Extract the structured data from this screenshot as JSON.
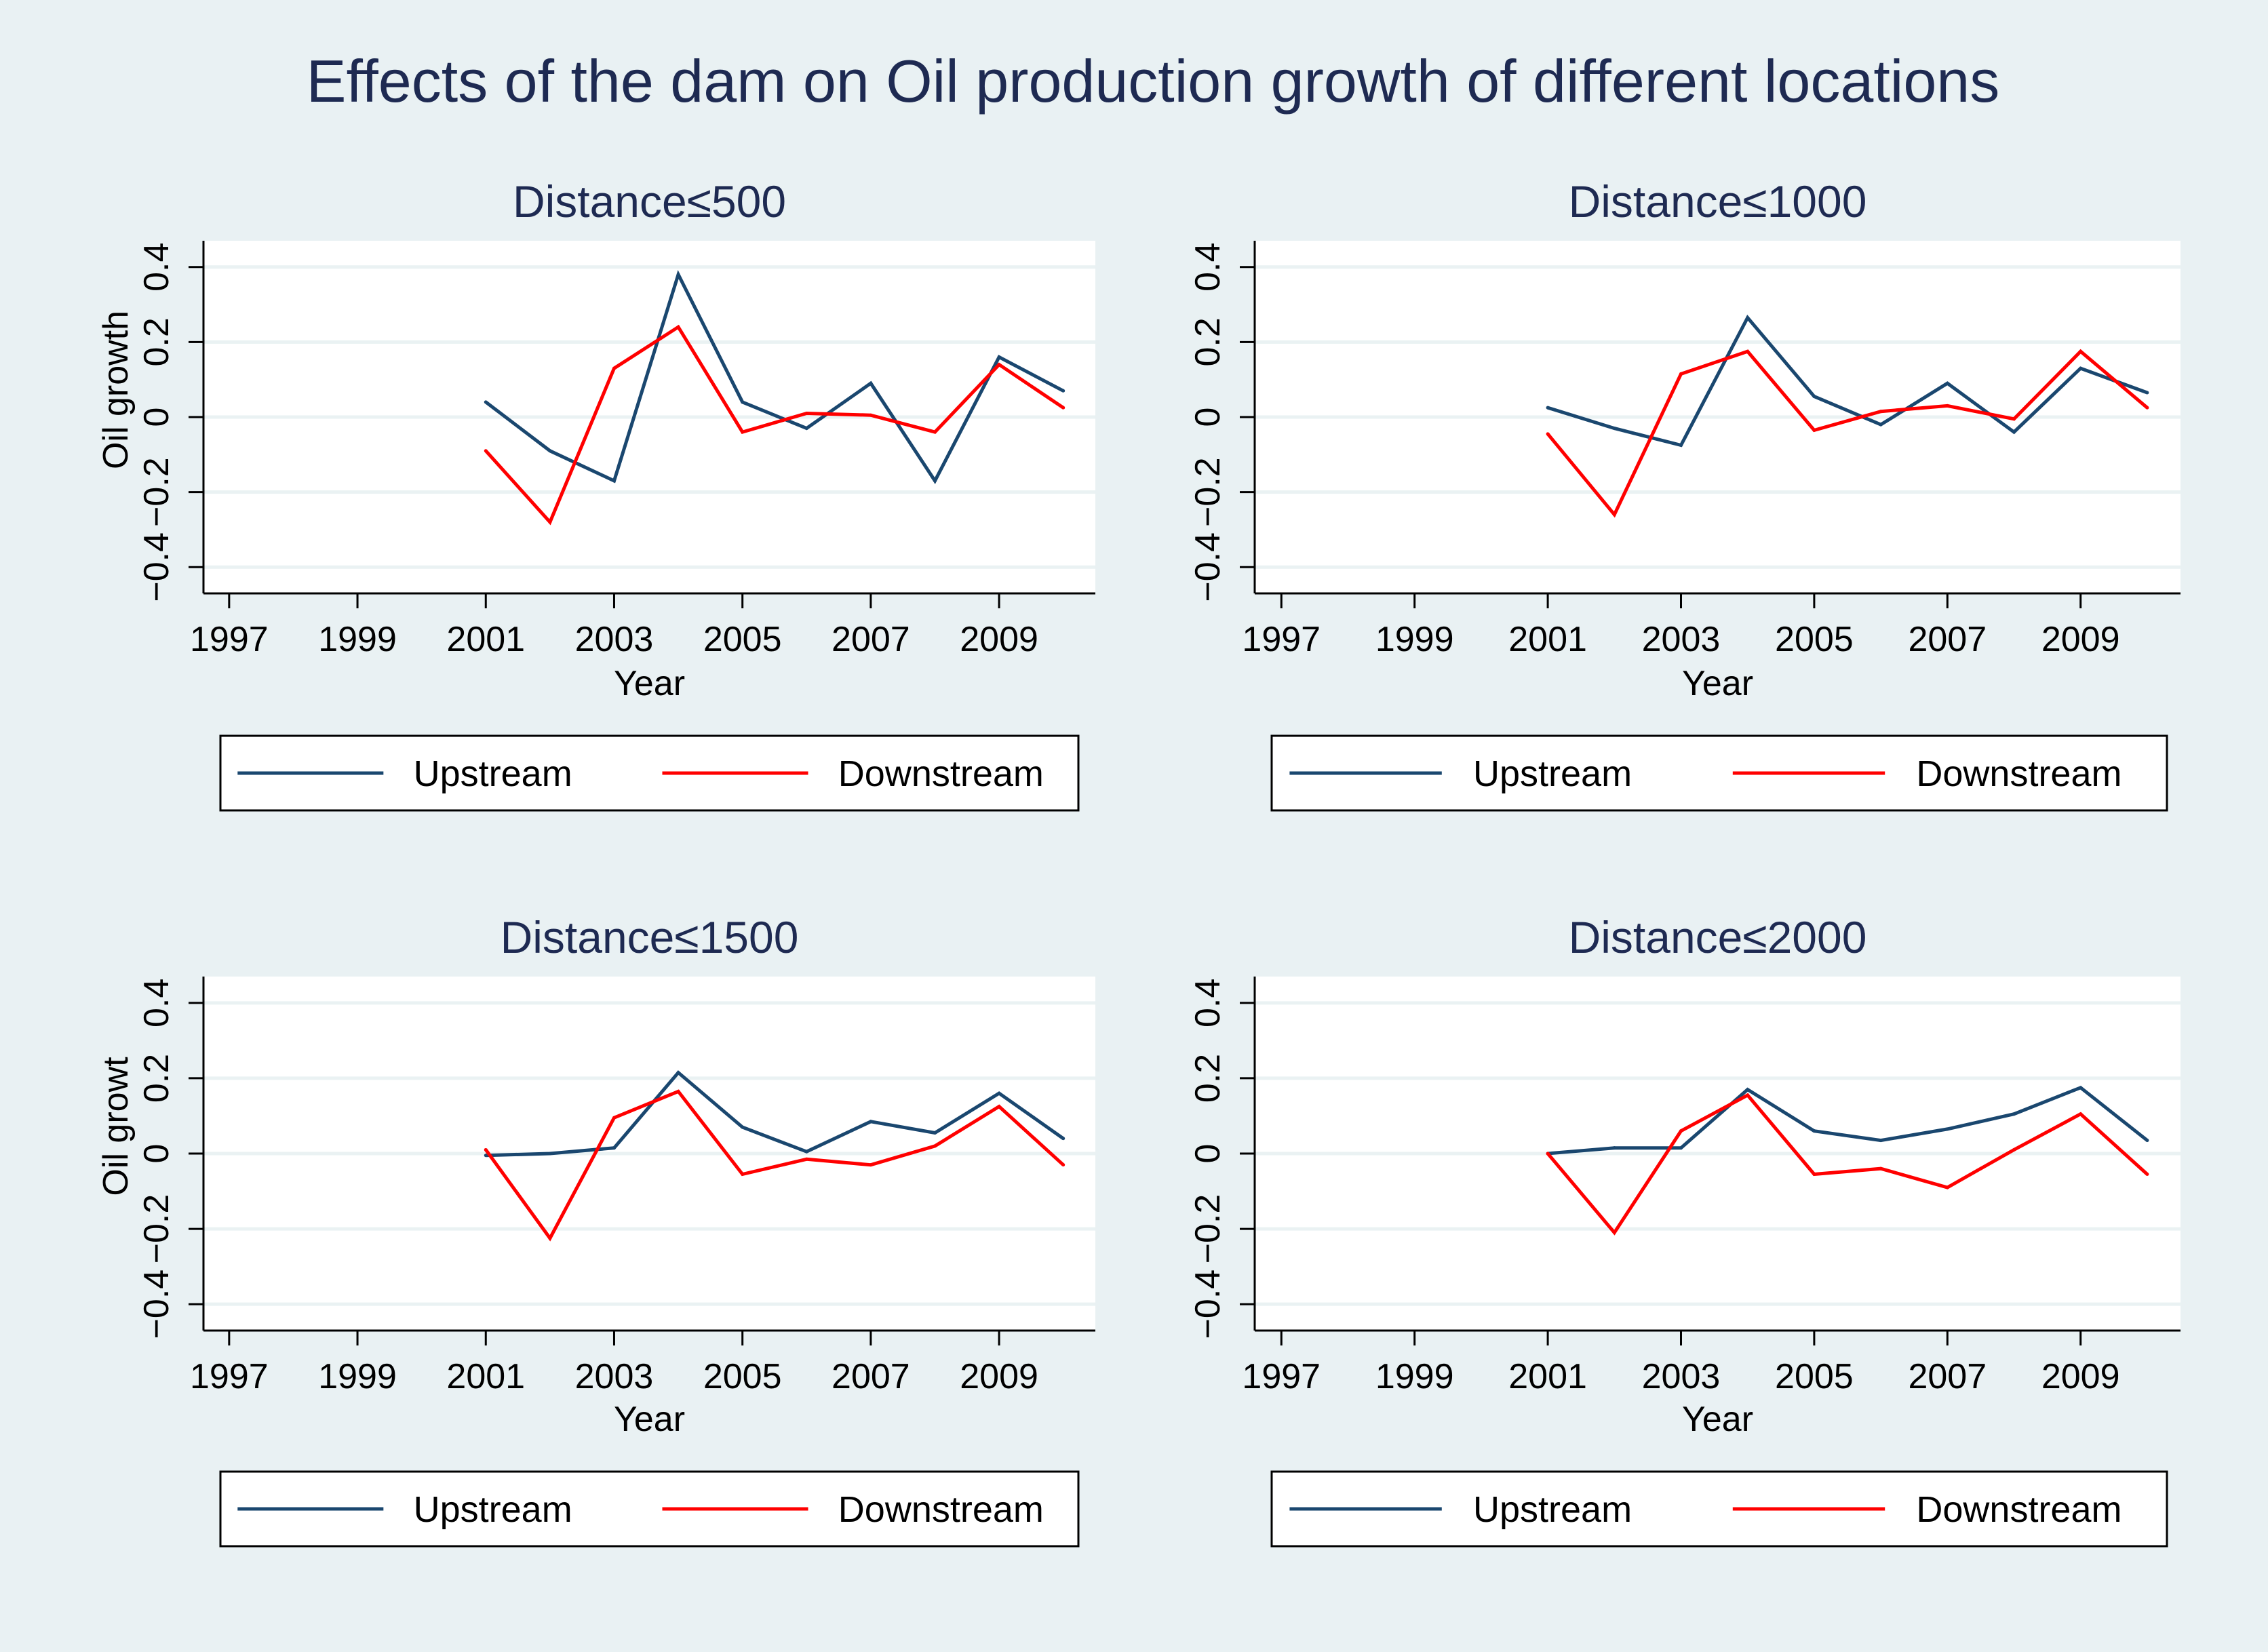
{
  "figure": {
    "title": "Effects of the dam on Oil production growth of different locations",
    "background": "#e9f1f3",
    "plot_background": "#ffffff",
    "title_color": "#1e2a52"
  },
  "chart_data": [
    {
      "type": "line",
      "title": "Distance≤500",
      "xlabel": "Year",
      "ylabel": "Oil growth",
      "xlim": [
        1996.6,
        2010.5
      ],
      "ylim": [
        -0.47,
        0.47
      ],
      "xticks": [
        "1997",
        "1999",
        "2001",
        "2003",
        "2005",
        "2007",
        "2009"
      ],
      "yticks": [
        "−0.4",
        "−0.2",
        "0",
        "0.2",
        "0.4"
      ],
      "grid": "horizontal",
      "legend": "bottom",
      "x": [
        2001,
        2002,
        2003,
        2004,
        2005,
        2006,
        2007,
        2008,
        2009,
        2010
      ],
      "series": [
        {
          "name": "Upstream",
          "color": "#1a476f",
          "values": [
            0.04,
            -0.09,
            -0.17,
            0.38,
            0.04,
            -0.03,
            0.09,
            -0.17,
            0.16,
            0.07
          ]
        },
        {
          "name": "Downstream",
          "color": "#ff0000",
          "values": [
            -0.09,
            -0.28,
            0.13,
            0.24,
            -0.04,
            0.01,
            0.005,
            -0.04,
            0.14,
            0.025
          ]
        }
      ]
    },
    {
      "type": "line",
      "title": "Distance≤1000",
      "xlabel": "Year",
      "ylabel": "",
      "xlim": [
        1996.6,
        2010.5
      ],
      "ylim": [
        -0.47,
        0.47
      ],
      "xticks": [
        "1997",
        "1999",
        "2001",
        "2003",
        "2005",
        "2007",
        "2009"
      ],
      "yticks": [
        "−0.4",
        "−0.2",
        "0",
        "0.2",
        "0.4"
      ],
      "grid": "horizontal",
      "legend": "bottom",
      "x": [
        2001,
        2002,
        2003,
        2004,
        2005,
        2006,
        2007,
        2008,
        2009,
        2010
      ],
      "series": [
        {
          "name": "Upstream",
          "color": "#1a476f",
          "values": [
            0.025,
            -0.03,
            -0.075,
            0.265,
            0.055,
            -0.02,
            0.09,
            -0.04,
            0.13,
            0.065
          ]
        },
        {
          "name": "Downstream",
          "color": "#ff0000",
          "values": [
            -0.045,
            -0.26,
            0.115,
            0.175,
            -0.035,
            0.015,
            0.03,
            -0.005,
            0.175,
            0.025
          ]
        }
      ]
    },
    {
      "type": "line",
      "title": "Distance≤1500",
      "xlabel": "Year",
      "ylabel": "Oil growt",
      "xlim": [
        1996.6,
        2010.5
      ],
      "ylim": [
        -0.47,
        0.47
      ],
      "xticks": [
        "1997",
        "1999",
        "2001",
        "2003",
        "2005",
        "2007",
        "2009"
      ],
      "yticks": [
        "−0.4",
        "−0.2",
        "0",
        "0.2",
        "0.4"
      ],
      "grid": "horizontal",
      "legend": "bottom",
      "x": [
        2001,
        2002,
        2003,
        2004,
        2005,
        2006,
        2007,
        2008,
        2009,
        2010
      ],
      "series": [
        {
          "name": "Upstream",
          "color": "#1a476f",
          "values": [
            -0.005,
            0.0,
            0.015,
            0.215,
            0.07,
            0.005,
            0.085,
            0.055,
            0.16,
            0.04
          ]
        },
        {
          "name": "Downstream",
          "color": "#ff0000",
          "values": [
            0.01,
            -0.225,
            0.095,
            0.165,
            -0.055,
            -0.015,
            -0.03,
            0.02,
            0.125,
            -0.03
          ]
        }
      ]
    },
    {
      "type": "line",
      "title": "Distance≤2000",
      "xlabel": "Year",
      "ylabel": "",
      "xlim": [
        1996.6,
        2010.5
      ],
      "ylim": [
        -0.47,
        0.47
      ],
      "xticks": [
        "1997",
        "1999",
        "2001",
        "2003",
        "2005",
        "2007",
        "2009"
      ],
      "yticks": [
        "−0.4",
        "−0.2",
        "0",
        "0.2",
        "0.4"
      ],
      "grid": "horizontal",
      "legend": "bottom",
      "x": [
        2001,
        2002,
        2003,
        2004,
        2005,
        2006,
        2007,
        2008,
        2009,
        2010
      ],
      "series": [
        {
          "name": "Upstream",
          "color": "#1a476f",
          "values": [
            0.0,
            0.015,
            0.015,
            0.17,
            0.06,
            0.035,
            0.065,
            0.105,
            0.175,
            0.035
          ]
        },
        {
          "name": "Downstream",
          "color": "#ff0000",
          "values": [
            0.0,
            -0.21,
            0.06,
            0.155,
            -0.055,
            -0.04,
            -0.09,
            0.01,
            0.105,
            -0.055
          ]
        }
      ]
    }
  ]
}
